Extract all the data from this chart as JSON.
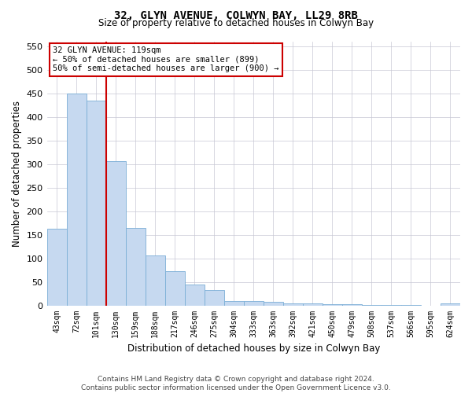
{
  "title_line1": "32, GLYN AVENUE, COLWYN BAY, LL29 8RB",
  "title_line2": "Size of property relative to detached houses in Colwyn Bay",
  "xlabel": "Distribution of detached houses by size in Colwyn Bay",
  "ylabel": "Number of detached properties",
  "footer_line1": "Contains HM Land Registry data © Crown copyright and database right 2024.",
  "footer_line2": "Contains public sector information licensed under the Open Government Licence v3.0.",
  "categories": [
    "43sqm",
    "72sqm",
    "101sqm",
    "130sqm",
    "159sqm",
    "188sqm",
    "217sqm",
    "246sqm",
    "275sqm",
    "304sqm",
    "333sqm",
    "363sqm",
    "392sqm",
    "421sqm",
    "450sqm",
    "479sqm",
    "508sqm",
    "537sqm",
    "566sqm",
    "595sqm",
    "624sqm"
  ],
  "values": [
    163,
    450,
    435,
    306,
    165,
    106,
    73,
    44,
    33,
    10,
    10,
    8,
    5,
    4,
    3,
    2,
    1,
    1,
    1,
    0,
    4
  ],
  "bar_color": "#c6d9f0",
  "bar_edge_color": "#7aaed6",
  "vline_x": 2.5,
  "vline_color": "#cc0000",
  "annotation_box_text": "32 GLYN AVENUE: 119sqm\n← 50% of detached houses are smaller (899)\n50% of semi-detached houses are larger (900) →",
  "ylim": [
    0,
    560
  ],
  "yticks": [
    0,
    50,
    100,
    150,
    200,
    250,
    300,
    350,
    400,
    450,
    500,
    550
  ],
  "background_color": "#ffffff",
  "grid_color": "#c8c8d4"
}
